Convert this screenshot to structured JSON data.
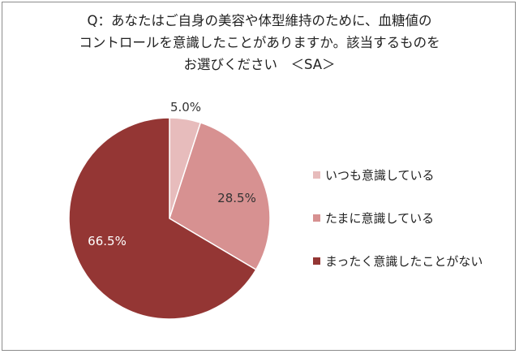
{
  "title_lines": [
    "Q：あなたはご自身の美容や体型維持のために、血糖値の",
    "コントロールを意識したことがありますか。該当するものを",
    "お選びください　＜SA＞"
  ],
  "colors": {
    "always": "#e7bcbc",
    "sometimes": "#d79191",
    "never": "#943634",
    "frame": "#8c8c8c"
  },
  "chart_data": {
    "type": "pie",
    "title": "Q：あなたはご自身の美容や体型維持のために、血糖値のコントロールを意識したことがありますか。該当するものをお選びください　＜SA＞",
    "legend_position": "right",
    "slices": [
      {
        "label": "いつも意識している",
        "value": 5.0,
        "value_label": "5.0%",
        "color": "#e7bcbc"
      },
      {
        "label": "たまに意識している",
        "value": 28.5,
        "value_label": "28.5%",
        "color": "#d79191"
      },
      {
        "label": "まったく意識したことがない",
        "value": 66.5,
        "value_label": "66.5%",
        "color": "#943634"
      }
    ]
  }
}
